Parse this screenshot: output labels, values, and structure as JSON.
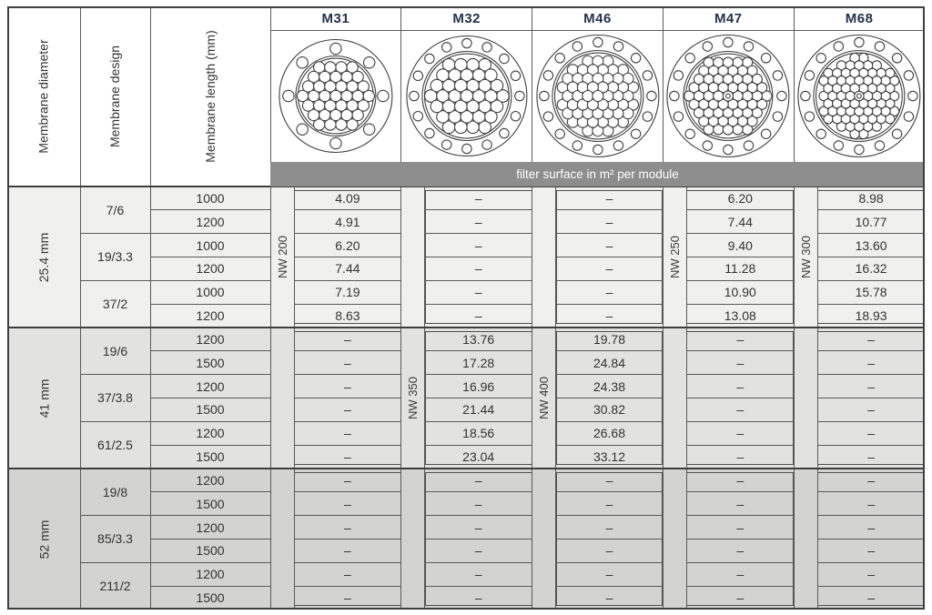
{
  "table": {
    "row_headers": [
      "Membrane diameter",
      "Membrane design",
      "Membrane length (mm)"
    ],
    "banner": "filter surface in m² per module",
    "no_value_symbol": "–",
    "colors": {
      "group_backgrounds": [
        "#f0f0ee",
        "#e2e2e0",
        "#d3d3d1"
      ],
      "banner_bg": "#8d8d8d",
      "banner_text": "#ffffff",
      "module_header_text": "#26324a",
      "grid_line": "#5a5a5a",
      "heavy_line": "#3e3e3e",
      "value_text": "#333333",
      "diagram_stroke": "#3e3e3e"
    },
    "modules": [
      {
        "name": "M31",
        "nw_label": "NW 200",
        "nw_group": 0,
        "diagram": {
          "bolt_holes": 8,
          "tubes": 37,
          "tube_r": 6.2,
          "outer_r": 62,
          "bolt_circle_r": 52,
          "bolt_hole_r": 6.2,
          "inner_r": 44,
          "spacing": 0.976,
          "center_dot": false
        }
      },
      {
        "name": "M32",
        "nw_label": "NW 350",
        "nw_group": 1,
        "diagram": {
          "bolt_holes": 16,
          "tubes": 37,
          "tube_r": 6.8,
          "outer_r": 66,
          "bolt_circle_r": 58,
          "bolt_hole_r": 5.2,
          "inner_r": 49,
          "spacing": 0.97,
          "center_dot": false
        }
      },
      {
        "name": "M46",
        "nw_label": "NW 400",
        "nw_group": 1,
        "diagram": {
          "bolt_holes": 16,
          "tubes": 55,
          "tube_r": 6.0,
          "outer_r": 67,
          "bolt_circle_r": 59,
          "bolt_hole_r": 5.2,
          "inner_r": 50,
          "spacing": 0.92,
          "center_dot": false
        }
      },
      {
        "name": "M47",
        "nw_label": "NW 250",
        "nw_group": 0,
        "diagram": {
          "bolt_holes": 16,
          "tubes": 61,
          "tube_r": 5.6,
          "outer_r": 67,
          "bolt_circle_r": 59,
          "bolt_hole_r": 5.2,
          "inner_r": 49,
          "spacing": 0.95,
          "center_dot": true
        }
      },
      {
        "name": "M68",
        "nw_label": "NW 300",
        "nw_group": 0,
        "diagram": {
          "bolt_holes": 16,
          "tubes": 73,
          "tube_r": 5.2,
          "outer_r": 67,
          "bolt_circle_r": 59,
          "bolt_hole_r": 5.2,
          "inner_r": 50,
          "spacing": 0.93,
          "center_dot": true
        }
      }
    ],
    "groups": [
      {
        "diameter": "25.4 mm",
        "designs": [
          {
            "design": "7/6",
            "rows": [
              {
                "length": "1000",
                "values": [
                  "4.09",
                  "–",
                  "–",
                  "6.20",
                  "8.98"
                ]
              },
              {
                "length": "1200",
                "values": [
                  "4.91",
                  "–",
                  "–",
                  "7.44",
                  "10.77"
                ]
              }
            ]
          },
          {
            "design": "19/3.3",
            "rows": [
              {
                "length": "1000",
                "values": [
                  "6.20",
                  "–",
                  "–",
                  "9.40",
                  "13.60"
                ]
              },
              {
                "length": "1200",
                "values": [
                  "7.44",
                  "–",
                  "–",
                  "11.28",
                  "16.32"
                ]
              }
            ]
          },
          {
            "design": "37/2",
            "rows": [
              {
                "length": "1000",
                "values": [
                  "7.19",
                  "–",
                  "–",
                  "10.90",
                  "15.78"
                ]
              },
              {
                "length": "1200",
                "values": [
                  "8.63",
                  "–",
                  "–",
                  "13.08",
                  "18.93"
                ]
              }
            ]
          }
        ]
      },
      {
        "diameter": "41 mm",
        "designs": [
          {
            "design": "19/6",
            "rows": [
              {
                "length": "1200",
                "values": [
                  "–",
                  "13.76",
                  "19.78",
                  "–",
                  "–"
                ]
              },
              {
                "length": "1500",
                "values": [
                  "–",
                  "17.28",
                  "24.84",
                  "–",
                  "–"
                ]
              }
            ]
          },
          {
            "design": "37/3.8",
            "rows": [
              {
                "length": "1200",
                "values": [
                  "–",
                  "16.96",
                  "24.38",
                  "–",
                  "–"
                ]
              },
              {
                "length": "1500",
                "values": [
                  "–",
                  "21.44",
                  "30.82",
                  "–",
                  "–"
                ]
              }
            ]
          },
          {
            "design": "61/2.5",
            "rows": [
              {
                "length": "1200",
                "values": [
                  "–",
                  "18.56",
                  "26.68",
                  "–",
                  "–"
                ]
              },
              {
                "length": "1500",
                "values": [
                  "–",
                  "23.04",
                  "33.12",
                  "–",
                  "–"
                ]
              }
            ]
          }
        ]
      },
      {
        "diameter": "52 mm",
        "designs": [
          {
            "design": "19/8",
            "rows": [
              {
                "length": "1200",
                "values": [
                  "–",
                  "–",
                  "–",
                  "–",
                  "–"
                ]
              },
              {
                "length": "1500",
                "values": [
                  "–",
                  "–",
                  "–",
                  "–",
                  "–"
                ]
              }
            ]
          },
          {
            "design": "85/3.3",
            "rows": [
              {
                "length": "1200",
                "values": [
                  "–",
                  "–",
                  "–",
                  "–",
                  "–"
                ]
              },
              {
                "length": "1500",
                "values": [
                  "–",
                  "–",
                  "–",
                  "–",
                  "–"
                ]
              }
            ]
          },
          {
            "design": "211/2",
            "rows": [
              {
                "length": "1200",
                "values": [
                  "–",
                  "–",
                  "–",
                  "–",
                  "–"
                ]
              },
              {
                "length": "1500",
                "values": [
                  "–",
                  "–",
                  "–",
                  "–",
                  "–"
                ]
              }
            ]
          }
        ]
      }
    ]
  }
}
